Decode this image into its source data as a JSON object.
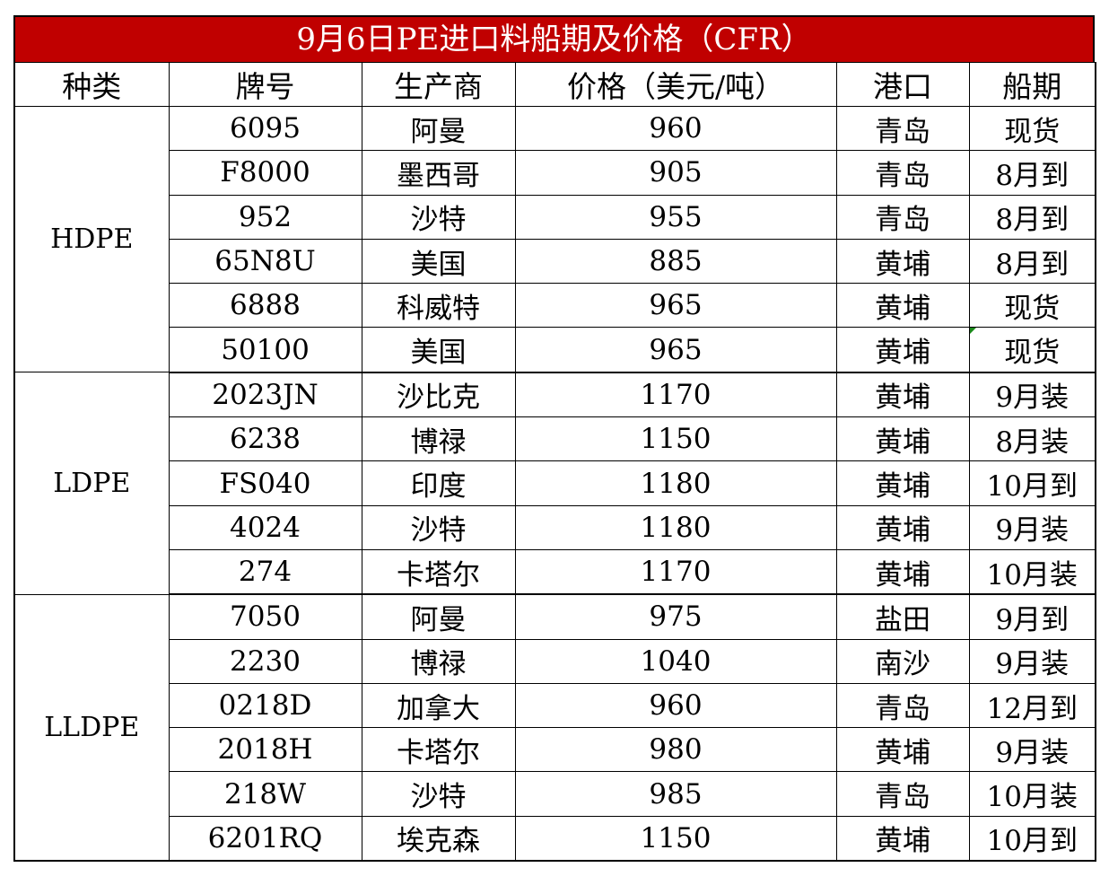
{
  "title": "9月6日PE进口料船期及价格（CFR）",
  "headers": [
    "种类",
    "牌号",
    "生产商",
    "价格（美元/吨）",
    "港口",
    "船期"
  ],
  "groups": [
    {
      "category": "HDPE",
      "rows": [
        {
          "grade": "6095",
          "producer": "阿曼",
          "price": "960",
          "port": "青岛",
          "shipment": "现货"
        },
        {
          "grade": "F8000",
          "producer": "墨西哥",
          "price": "905",
          "port": "青岛",
          "shipment": "8月到"
        },
        {
          "grade": "952",
          "producer": "沙特",
          "price": "955",
          "port": "青岛",
          "shipment": "8月到"
        },
        {
          "grade": "65N8U",
          "producer": "美国",
          "price": "885",
          "port": "黄埔",
          "shipment": "8月到"
        },
        {
          "grade": "6888",
          "producer": "科威特",
          "price": "965",
          "port": "黄埔",
          "shipment": "现货"
        },
        {
          "grade": "50100",
          "producer": "美国",
          "price": "965",
          "port": "黄埔",
          "shipment": "现货"
        }
      ]
    },
    {
      "category": "LDPE",
      "rows": [
        {
          "grade": "2023JN",
          "producer": "沙比克",
          "price": "1170",
          "port": "黄埔",
          "shipment": "9月装"
        },
        {
          "grade": "6238",
          "producer": "博禄",
          "price": "1150",
          "port": "黄埔",
          "shipment": "8月装"
        },
        {
          "grade": "FS040",
          "producer": "印度",
          "price": "1180",
          "port": "黄埔",
          "shipment": "10月到"
        },
        {
          "grade": "4024",
          "producer": "沙特",
          "price": "1180",
          "port": "黄埔",
          "shipment": "9月装"
        },
        {
          "grade": "274",
          "producer": "卡塔尔",
          "price": "1170",
          "port": "黄埔",
          "shipment": "10月装"
        }
      ]
    },
    {
      "category": "LLDPE",
      "rows": [
        {
          "grade": "7050",
          "producer": "阿曼",
          "price": "975",
          "port": "盐田",
          "shipment": "9月到"
        },
        {
          "grade": "2230",
          "producer": "博禄",
          "price": "1040",
          "port": "南沙",
          "shipment": "9月装"
        },
        {
          "grade": "0218D",
          "producer": "加拿大",
          "price": "960",
          "port": "青岛",
          "shipment": "12月到"
        },
        {
          "grade": "2018H",
          "producer": "卡塔尔",
          "price": "980",
          "port": "黄埔",
          "shipment": "9月装"
        },
        {
          "grade": "218W",
          "producer": "沙特",
          "price": "985",
          "port": "青岛",
          "shipment": "10月装"
        },
        {
          "grade": "6201RQ",
          "producer": "埃克森",
          "price": "1150",
          "port": "黄埔",
          "shipment": "10月到"
        }
      ]
    }
  ],
  "colors": {
    "title_bg": "#c00000",
    "title_text": "#ffffff",
    "grid": "#000000"
  }
}
